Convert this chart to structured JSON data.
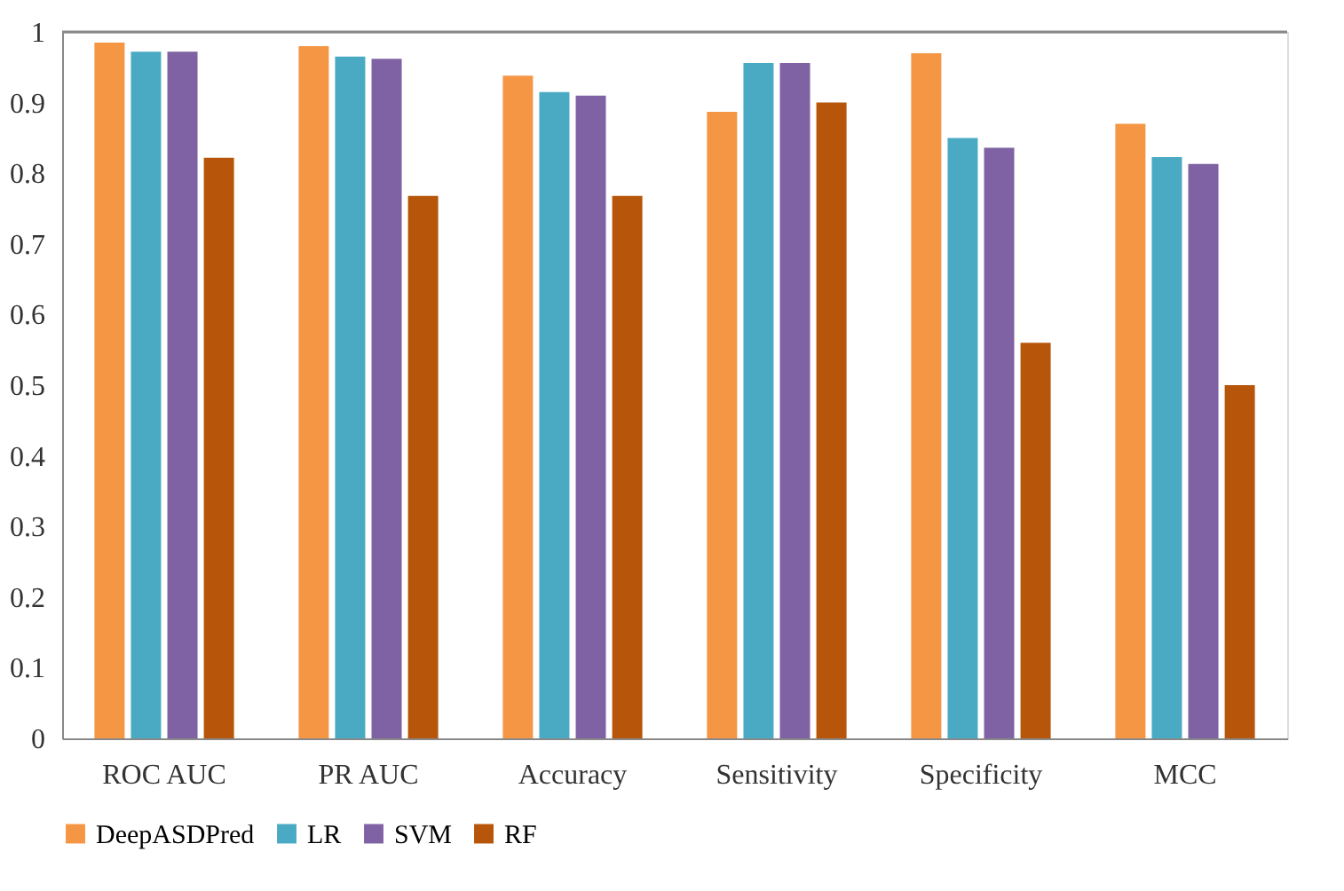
{
  "chart_data": {
    "type": "bar",
    "categories": [
      "ROC AUC",
      "PR AUC",
      "Accuracy",
      "Sensitivity",
      "Specificity",
      "MCC"
    ],
    "series": [
      {
        "name": "DeepASDPred",
        "color": "#f59645",
        "values": [
          0.985,
          0.98,
          0.938,
          0.887,
          0.97,
          0.87
        ]
      },
      {
        "name": "LR",
        "color": "#4aaac4",
        "values": [
          0.972,
          0.965,
          0.915,
          0.956,
          0.85,
          0.823
        ]
      },
      {
        "name": "SVM",
        "color": "#7f62a3",
        "values": [
          0.972,
          0.962,
          0.91,
          0.956,
          0.836,
          0.813
        ]
      },
      {
        "name": "RF",
        "color": "#b7560a",
        "values": [
          0.822,
          0.768,
          0.768,
          0.9,
          0.56,
          0.5
        ]
      }
    ],
    "ylim": [
      0,
      1
    ],
    "yticks": [
      0,
      0.1,
      0.2,
      0.3,
      0.4,
      0.5,
      0.6,
      0.7,
      0.8,
      0.9,
      1
    ],
    "grid": false,
    "legend": "bottom"
  }
}
